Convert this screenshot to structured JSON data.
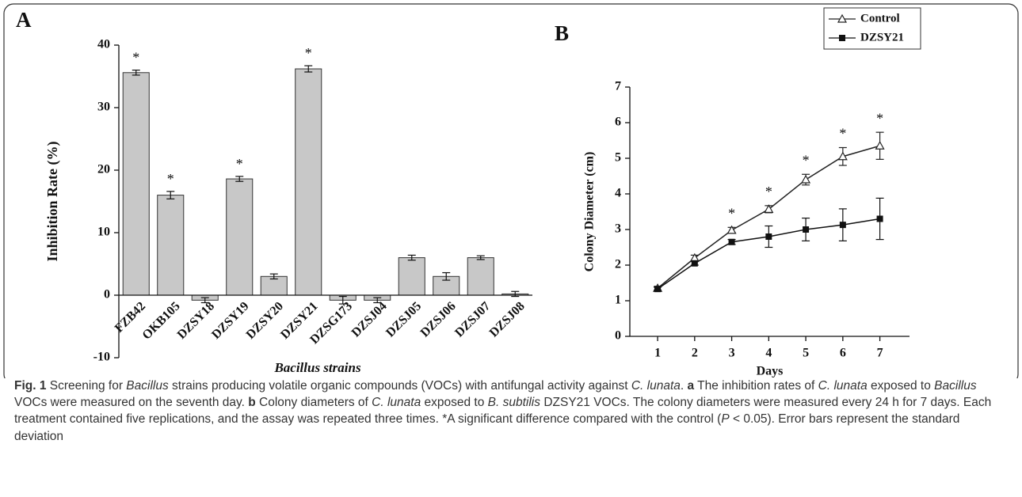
{
  "chart_data": [
    {
      "type": "bar",
      "panel_label": "A",
      "ylabel": "Inhibition Rate (%)",
      "xlabel": "Bacillus strains",
      "categories": [
        "FZB42",
        "OKB105",
        "DZSY18",
        "DZSY19",
        "DZSY20",
        "DZSY21",
        "DZSG173",
        "DZSJ04",
        "DZSJ05",
        "DZSJ06",
        "DZSJ07",
        "DZSJ08"
      ],
      "values": [
        35.6,
        16,
        -0.8,
        18.6,
        3,
        36.2,
        -0.8,
        -0.8,
        6,
        3,
        6,
        0.2
      ],
      "errors": [
        0.4,
        0.6,
        0.4,
        0.4,
        0.4,
        0.5,
        0.6,
        0.4,
        0.4,
        0.6,
        0.3,
        0.4
      ],
      "significance": [
        "*",
        "*",
        null,
        "*",
        null,
        "*",
        null,
        null,
        null,
        null,
        null,
        null
      ],
      "color": "#c8c8c8",
      "ylim": [
        -10,
        40
      ],
      "yticks": [
        -10,
        0,
        10,
        20,
        30,
        40
      ]
    },
    {
      "type": "line",
      "panel_label": "B",
      "ylabel": "Colony Diameter (cm)",
      "xlabel": "Days",
      "x": [
        1,
        2,
        3,
        4,
        5,
        6,
        7
      ],
      "series": [
        {
          "name": "Control",
          "color": "#222222",
          "marker": "open-triangle",
          "values": [
            1.35,
            2.2,
            2.98,
            3.57,
            4.4,
            5.05,
            5.35
          ],
          "errors": [
            0.05,
            0.08,
            0.08,
            0.1,
            0.15,
            0.25,
            0.38
          ]
        },
        {
          "name": "DZSY21",
          "color": "#111111",
          "marker": "filled-square",
          "values": [
            1.33,
            2.05,
            2.65,
            2.8,
            3.0,
            3.13,
            3.3
          ],
          "errors": [
            0.05,
            0.05,
            0.07,
            0.3,
            0.32,
            0.45,
            0.58
          ]
        }
      ],
      "significance": [
        null,
        null,
        "*",
        "*",
        "*",
        "*",
        "*"
      ],
      "xlim": [
        0.25,
        7.8
      ],
      "xticks": [
        1,
        2,
        3,
        4,
        5,
        6,
        7
      ],
      "ylim": [
        0,
        7
      ],
      "yticks": [
        0,
        1,
        2,
        3,
        4,
        5,
        6,
        7
      ],
      "legend": "top-right"
    }
  ],
  "caption": [
    {
      "text": "Fig. 1",
      "style": "bold"
    },
    {
      "text": " Screening for ",
      "style": "normal"
    },
    {
      "text": "Bacillus",
      "style": "italic"
    },
    {
      "text": " strains producing volatile organic compounds (VOCs) with antifungal activity against ",
      "style": "normal"
    },
    {
      "text": "C. lunata",
      "style": "italic"
    },
    {
      "text": ". ",
      "style": "normal"
    },
    {
      "text": "a",
      "style": "bold"
    },
    {
      "text": " The inhibition rates of ",
      "style": "normal"
    },
    {
      "text": "C. lunata",
      "style": "italic"
    },
    {
      "text": " exposed to ",
      "style": "normal"
    },
    {
      "text": "Bacillus",
      "style": "italic"
    },
    {
      "text": " VOCs were measured on the seventh day. ",
      "style": "normal"
    },
    {
      "text": "b",
      "style": "bold"
    },
    {
      "text": " Colony diameters of ",
      "style": "normal"
    },
    {
      "text": "C. lunata",
      "style": "italic"
    },
    {
      "text": " exposed to ",
      "style": "normal"
    },
    {
      "text": "B. subtilis",
      "style": "italic"
    },
    {
      "text": " DZSY21 VOCs. The colony diameters were measured every 24 h for 7 days. Each treatment contained five replications, and the assay was repeated three times. *A significant difference compared with the control (",
      "style": "normal"
    },
    {
      "text": "P",
      "style": "italic"
    },
    {
      "text": " < 0.05). Error bars represent the standard deviation",
      "style": "normal"
    }
  ]
}
